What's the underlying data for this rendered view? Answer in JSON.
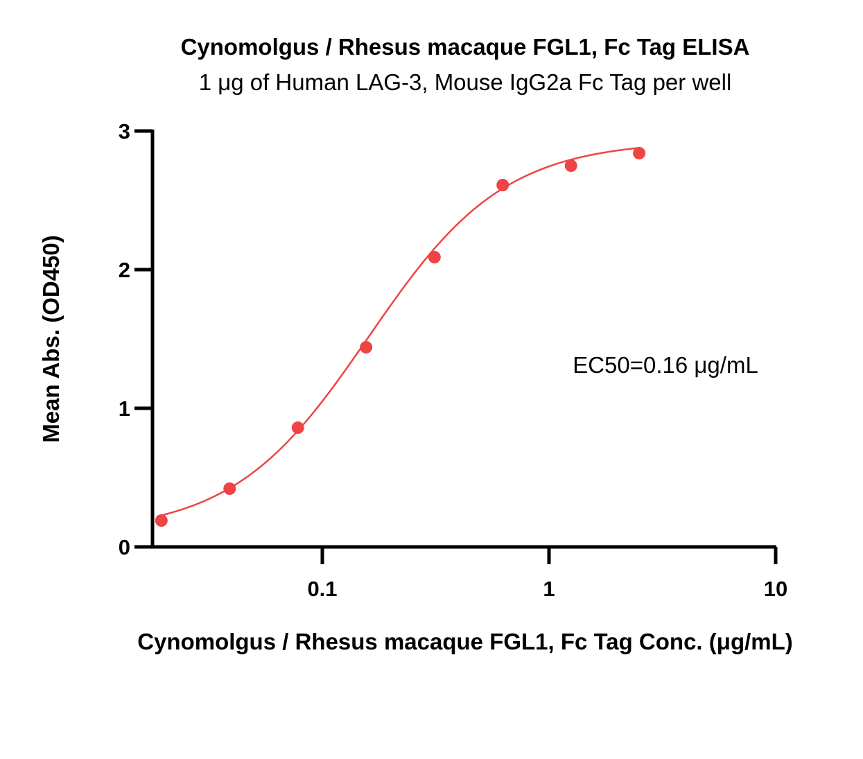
{
  "chart_data": {
    "type": "scatter",
    "title": "Cynomolgus / Rhesus macaque FGL1, Fc Tag ELISA",
    "subtitle": "1 μg of Human LAG-3, Mouse IgG2a Fc Tag per well",
    "xlabel": "Cynomolgus / Rhesus macaque FGL1, Fc Tag Conc. (μg/mL)",
    "ylabel": "Mean Abs. (OD450)",
    "x_scale": "log",
    "xlim": [
      0.0186,
      10
    ],
    "ylim": [
      0,
      3
    ],
    "x_ticks": [
      0.1,
      1,
      10
    ],
    "x_tick_labels": [
      "0.1",
      "1",
      "10"
    ],
    "y_ticks": [
      0,
      1,
      2,
      3
    ],
    "y_tick_labels": [
      "0",
      "1",
      "2",
      "3"
    ],
    "grid": false,
    "annotation": "EC50=0.16 μg/mL",
    "series": [
      {
        "x": [
          0.0195,
          0.039,
          0.078,
          0.156,
          0.3125,
          0.625,
          1.25,
          2.5
        ],
        "y": [
          0.19,
          0.42,
          0.86,
          1.44,
          2.09,
          2.61,
          2.75,
          2.84
        ],
        "color": "#ef4444",
        "fit": {
          "model": "4PL",
          "bottom": 0.1,
          "top": 2.93,
          "ec50": 0.16,
          "hill": 1.45
        }
      }
    ]
  }
}
